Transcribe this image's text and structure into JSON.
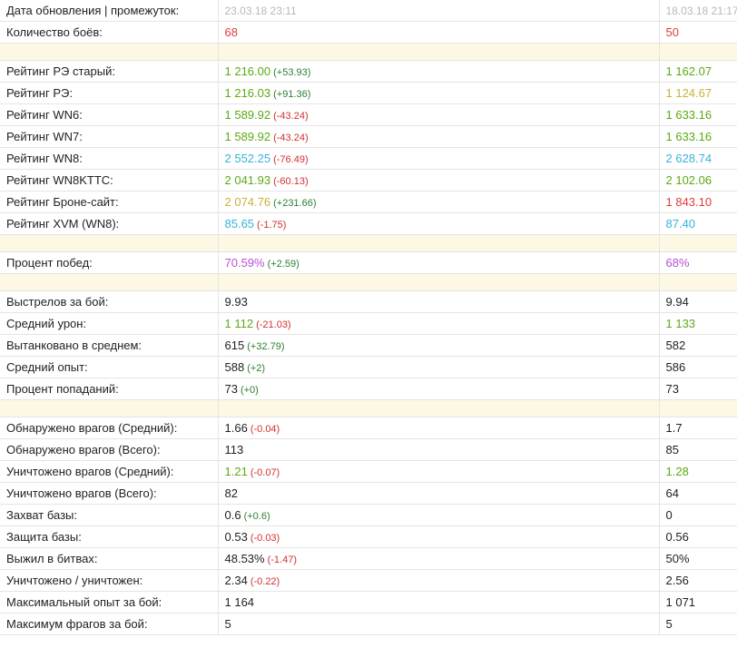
{
  "header": {
    "label": "Дата обновления | промежуток:",
    "current_date": "23.03.18 23:11",
    "previous_date": "18.03.18 21:17"
  },
  "rows": [
    {
      "type": "row",
      "label": "Количество боёв:",
      "current": "68",
      "current_color": "r",
      "delta": "",
      "delta_sign": "",
      "previous": "50",
      "previous_color": "r"
    },
    {
      "type": "spacer"
    },
    {
      "type": "row",
      "label": "Рейтинг РЭ старый:",
      "current": "1 216.00",
      "current_color": "g",
      "delta": "(+53.93)",
      "delta_sign": "pos",
      "previous": "1 162.07",
      "previous_color": "g"
    },
    {
      "type": "row",
      "label": "Рейтинг РЭ:",
      "current": "1 216.03",
      "current_color": "g",
      "delta": "(+91.36)",
      "delta_sign": "pos",
      "previous": "1 124.67",
      "previous_color": "y"
    },
    {
      "type": "row",
      "label": "Рейтинг WN6:",
      "current": "1 589.92",
      "current_color": "g",
      "delta": "(-43.24)",
      "delta_sign": "neg",
      "previous": "1 633.16",
      "previous_color": "g"
    },
    {
      "type": "row",
      "label": "Рейтинг WN7:",
      "current": "1 589.92",
      "current_color": "g",
      "delta": "(-43.24)",
      "delta_sign": "neg",
      "previous": "1 633.16",
      "previous_color": "g"
    },
    {
      "type": "row",
      "label": "Рейтинг WN8:",
      "current": "2 552.25",
      "current_color": "b",
      "delta": "(-76.49)",
      "delta_sign": "neg",
      "previous": "2 628.74",
      "previous_color": "b"
    },
    {
      "type": "row",
      "label": "Рейтинг WN8KTTC:",
      "current": "2 041.93",
      "current_color": "g",
      "delta": "(-60.13)",
      "delta_sign": "neg",
      "previous": "2 102.06",
      "previous_color": "g"
    },
    {
      "type": "row",
      "label": "Рейтинг Броне-сайт:",
      "current": "2 074.76",
      "current_color": "y",
      "delta": "(+231.66)",
      "delta_sign": "pos",
      "previous": "1 843.10",
      "previous_color": "r"
    },
    {
      "type": "row",
      "label": "Рейтинг XVM (WN8):",
      "current": "85.65",
      "current_color": "b",
      "delta": "(-1.75)",
      "delta_sign": "neg",
      "previous": "87.40",
      "previous_color": "b"
    },
    {
      "type": "spacer"
    },
    {
      "type": "row",
      "label": "Процент побед:",
      "current": "70.59%",
      "current_color": "p",
      "delta": "(+2.59)",
      "delta_sign": "pos",
      "previous": "68%",
      "previous_color": "p"
    },
    {
      "type": "spacer"
    },
    {
      "type": "row",
      "label": "Выстрелов за бой:",
      "current": "9.93",
      "current_color": "k",
      "delta": "",
      "delta_sign": "",
      "previous": "9.94",
      "previous_color": "k"
    },
    {
      "type": "row",
      "label": "Средний урон:",
      "current": "1 112",
      "current_color": "g",
      "delta": "(-21.03)",
      "delta_sign": "neg",
      "previous": "1 133",
      "previous_color": "g"
    },
    {
      "type": "row",
      "label": "Вытанковано в среднем:",
      "current": "615",
      "current_color": "k",
      "delta": "(+32.79)",
      "delta_sign": "pos",
      "previous": "582",
      "previous_color": "k"
    },
    {
      "type": "row",
      "label": "Средний опыт:",
      "current": "588",
      "current_color": "k",
      "delta": "(+2)",
      "delta_sign": "pos",
      "previous": "586",
      "previous_color": "k"
    },
    {
      "type": "row",
      "label": "Процент попаданий:",
      "current": "73",
      "current_color": "k",
      "delta": "(+0)",
      "delta_sign": "pos",
      "previous": "73",
      "previous_color": "k"
    },
    {
      "type": "spacer"
    },
    {
      "type": "row",
      "label": "Обнаружено врагов (Средний):",
      "current": "1.66",
      "current_color": "k",
      "delta": "(-0.04)",
      "delta_sign": "neg",
      "previous": "1.7",
      "previous_color": "k"
    },
    {
      "type": "row",
      "label": "Обнаружено врагов (Всего):",
      "current": "113",
      "current_color": "k",
      "delta": "",
      "delta_sign": "",
      "previous": "85",
      "previous_color": "k"
    },
    {
      "type": "row",
      "label": "Уничтожено врагов (Средний):",
      "current": "1.21",
      "current_color": "g",
      "delta": "(-0.07)",
      "delta_sign": "neg",
      "previous": "1.28",
      "previous_color": "g"
    },
    {
      "type": "row",
      "label": "Уничтожено врагов (Всего):",
      "current": "82",
      "current_color": "k",
      "delta": "",
      "delta_sign": "",
      "previous": "64",
      "previous_color": "k"
    },
    {
      "type": "row",
      "label": "Захват базы:",
      "current": "0.6",
      "current_color": "k",
      "delta": "(+0.6)",
      "delta_sign": "pos",
      "previous": "0",
      "previous_color": "k"
    },
    {
      "type": "row",
      "label": "Защита базы:",
      "current": "0.53",
      "current_color": "k",
      "delta": "(-0.03)",
      "delta_sign": "neg",
      "previous": "0.56",
      "previous_color": "k"
    },
    {
      "type": "row",
      "label": "Выжил в битвах:",
      "current": "48.53%",
      "current_color": "k",
      "delta": "(-1.47)",
      "delta_sign": "neg",
      "previous": "50%",
      "previous_color": "k"
    },
    {
      "type": "row",
      "label": "Уничтожено / уничтожен:",
      "current": "2.34",
      "current_color": "k",
      "delta": "(-0.22)",
      "delta_sign": "neg",
      "previous": "2.56",
      "previous_color": "k"
    },
    {
      "type": "row",
      "label": "Максимальный опыт за бой:",
      "current": "1 164",
      "current_color": "k",
      "delta": "",
      "delta_sign": "",
      "previous": "1 071",
      "previous_color": "k"
    },
    {
      "type": "row",
      "label": "Максимум фрагов за бой:",
      "current": "5",
      "current_color": "k",
      "delta": "",
      "delta_sign": "",
      "previous": "5",
      "previous_color": "k"
    }
  ]
}
